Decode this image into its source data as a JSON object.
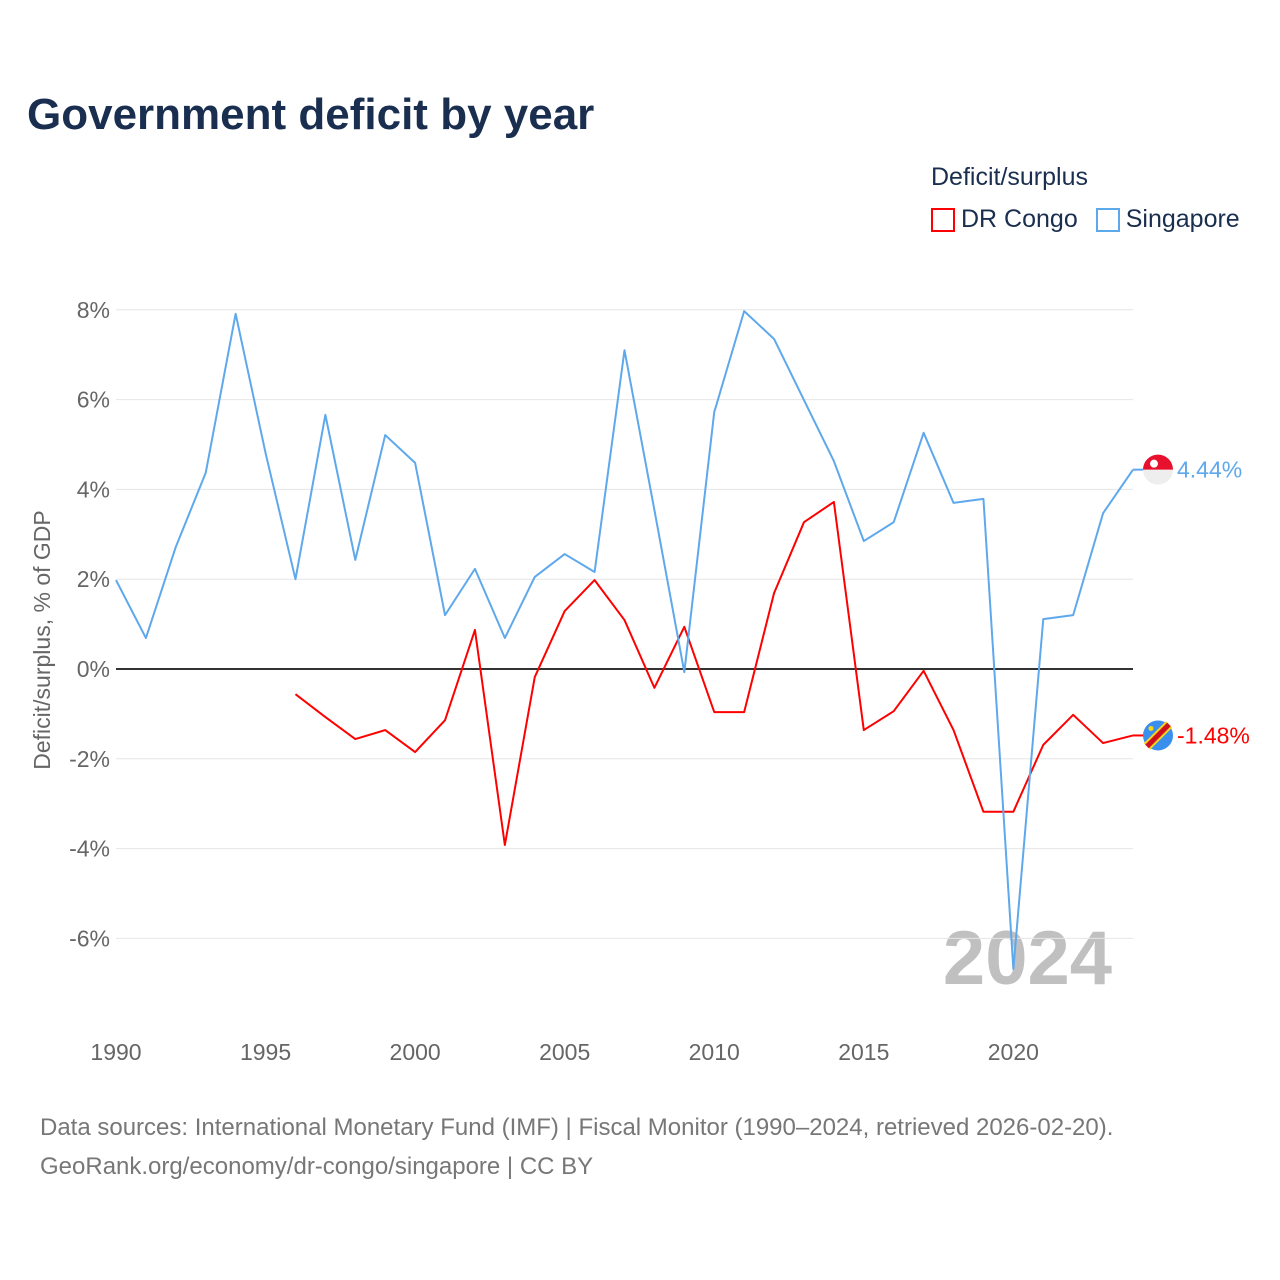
{
  "chart_data": {
    "type": "line",
    "title": "Government deficit by year",
    "xlabel": "",
    "ylabel": "Deficit/surplus, % of GDP",
    "legend_title": "Deficit/surplus",
    "legend_position": "top-right",
    "xlim": [
      1990,
      2024
    ],
    "ylim": [
      -8,
      8.5
    ],
    "x_ticks": [
      1990,
      1995,
      2000,
      2005,
      2010,
      2015,
      2020
    ],
    "x_tick_labels": [
      "1990",
      "1995",
      "2000",
      "2005",
      "2010",
      "2015",
      "2020"
    ],
    "y_ticks": [
      -6,
      -4,
      -2,
      0,
      2,
      4,
      6,
      8
    ],
    "y_tick_labels": [
      "-6%",
      "-4%",
      "-2%",
      "0%",
      "2%",
      "4%",
      "6%",
      "8%"
    ],
    "grid": true,
    "watermark_year": "2024",
    "series": [
      {
        "name": "DR Congo",
        "color": "#ff0000",
        "end_label": "-1.48%",
        "x": [
          1996,
          1997,
          1998,
          1999,
          2000,
          2001,
          2002,
          2003,
          2004,
          2005,
          2006,
          2007,
          2008,
          2009,
          2010,
          2011,
          2012,
          2013,
          2014,
          2015,
          2016,
          2017,
          2018,
          2019,
          2020,
          2021,
          2022,
          2023,
          2024
        ],
        "values": [
          -0.56,
          -1.07,
          -1.56,
          -1.36,
          -1.85,
          -1.14,
          0.87,
          -3.92,
          -0.18,
          1.29,
          1.98,
          1.09,
          -0.42,
          0.94,
          -0.96,
          -0.96,
          1.69,
          3.27,
          3.72,
          -1.36,
          -0.94,
          -0.04,
          -1.36,
          -3.18,
          -3.18,
          -1.69,
          -1.02,
          -1.65,
          -1.48
        ]
      },
      {
        "name": "Singapore",
        "color": "#5ea8ec",
        "end_label": "4.44%",
        "x": [
          1990,
          1991,
          1992,
          1993,
          1994,
          1995,
          1996,
          1997,
          1998,
          1999,
          2000,
          2001,
          2002,
          2003,
          2004,
          2005,
          2006,
          2007,
          2008,
          2009,
          2010,
          2011,
          2012,
          2013,
          2014,
          2015,
          2016,
          2017,
          2018,
          2019,
          2020,
          2021,
          2022,
          2023,
          2024
        ],
        "values": [
          1.98,
          0.69,
          2.72,
          4.37,
          7.91,
          4.81,
          2.0,
          5.66,
          2.43,
          5.21,
          4.59,
          1.2,
          2.23,
          0.69,
          2.05,
          2.56,
          2.16,
          7.1,
          3.54,
          -0.07,
          5.72,
          7.97,
          7.35,
          5.99,
          4.63,
          2.85,
          3.27,
          5.26,
          3.7,
          3.79,
          -6.68,
          1.11,
          1.2,
          3.47,
          4.44
        ]
      }
    ]
  },
  "footer": {
    "line1": "Data sources: International Monetary Fund (IMF) | Fiscal Monitor (1990–2024, retrieved 2026-02-20).",
    "line2": "GeoRank.org/economy/dr-congo/singapore | CC BY"
  }
}
